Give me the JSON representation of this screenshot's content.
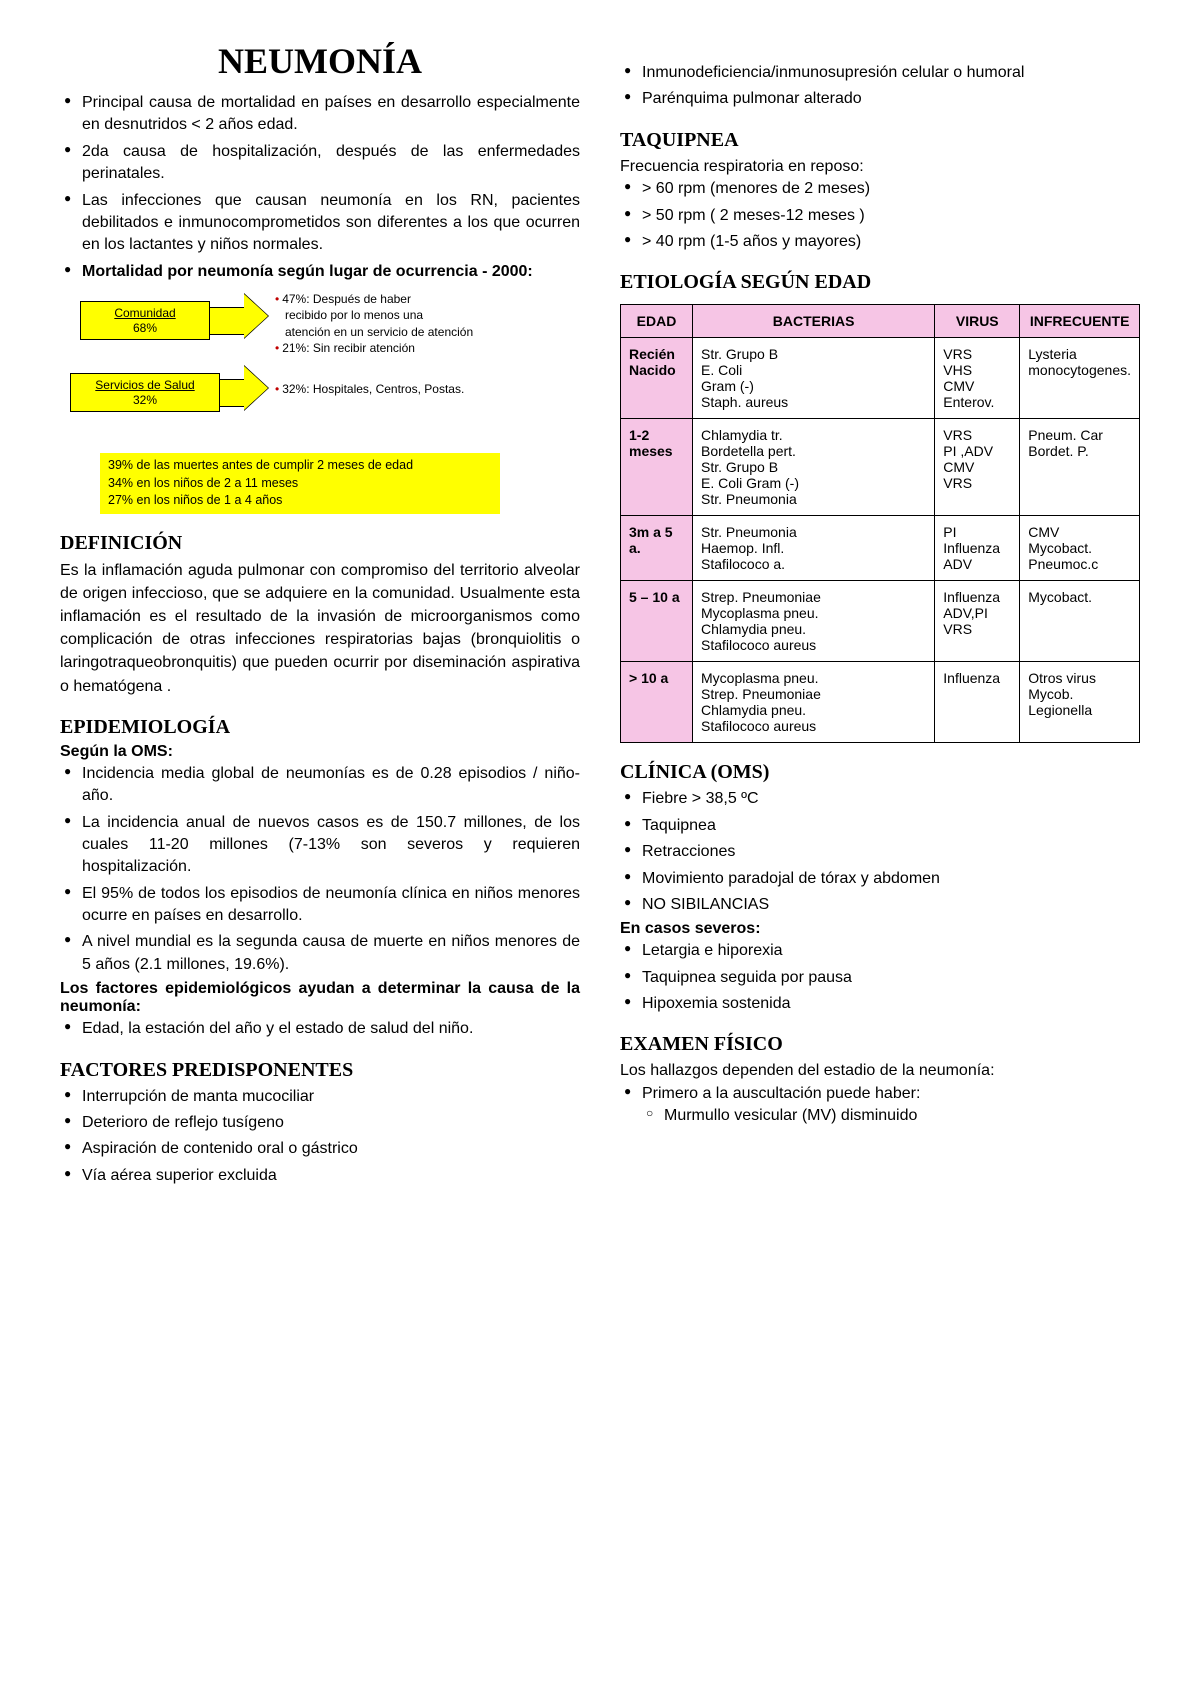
{
  "title": "NEUMONÍA",
  "intro_bullets": [
    "Principal causa de mortalidad  en países en desarrollo especialmente en desnutridos < 2 años edad.",
    "2da causa de hospitalización, después de las enfermedades perinatales.",
    "Las infecciones que causan neumonía en los RN, pacientes debilitados e inmunocomprometidos son diferentes a los que ocurren en los lactantes y niños normales."
  ],
  "intro_bold": "Mortalidad por neumonía según lugar de ocurrencia - 2000:",
  "diagram": {
    "box1_label": "Comunidad",
    "box1_pct": "68%",
    "box2_label": "Servicios de Salud",
    "box2_pct": "32%",
    "ann1a": "47%: Después de haber",
    "ann1b": "recibido por lo menos una",
    "ann1c": "atención en un servicio de atención",
    "ann1d": "21%:  Sin recibir atención",
    "ann2": "32%: Hospitales, Centros, Postas.",
    "block_lines": [
      "39% de las muertes antes de cumplir 2 meses de edad",
      "34% en los niños de 2 a 11 meses",
      "27% en los niños de 1 a 4 años"
    ]
  },
  "def_head": "DEFINICIÓN",
  "def_text": "Es la inflamación aguda pulmonar con compromiso del territorio alveolar de origen infeccioso, que se adquiere en la comunidad. Usualmente esta inflamación es el resultado de la invasión de microorganismos como complicación de otras infecciones respiratorias bajas (bronquiolitis o laringotraqueobronquitis) que pueden ocurrir por diseminación aspirativa o hematógena .",
  "epi_head": "EPIDEMIOLOGÍA",
  "epi_sub": "Según la OMS:",
  "epi_bullets": [
    "Incidencia media global de neumonías es de 0.28 episodios / niño-año.",
    "La incidencia anual de nuevos casos es de 150.7 millones, de los cuales 11-20 millones (7-13% son severos y requieren hospitalización.",
    "El 95% de todos los episodios de neumonía clínica en niños menores ocurre en países en desarrollo.",
    "A nivel mundial es la segunda causa de muerte en niños menores de 5 años (2.1 millones, 19.6%)."
  ],
  "epi_sub2": "Los factores epidemiológicos ayudan a determinar la causa de la neumonía:",
  "epi_bullets2": [
    "Edad, la estación del año y el estado de salud del niño."
  ],
  "fact_head": "FACTORES PREDISPONENTES",
  "fact_bullets": [
    "Interrupción de manta mucociliar",
    "Deterioro de reflejo tusígeno",
    "Aspiración de contenido oral o gástrico",
    "Vía aérea superior excluida"
  ],
  "right_top_bullets": [
    "Inmunodeficiencia/inmunosupresión celular o humoral",
    "Parénquima pulmonar alterado"
  ],
  "taq_head": "TAQUIPNEA",
  "taq_intro": "Frecuencia respiratoria en reposo:",
  "taq_bullets": [
    "> 60 rpm (menores de 2 meses)",
    "> 50 rpm  ( 2 meses-12 meses )",
    "> 40 rpm  (1-5 años y mayores)"
  ],
  "etio_head": "ETIOLOGÍA SEGÚN EDAD",
  "etio_table": {
    "headers": [
      "EDAD",
      "BACTERIAS",
      "VIRUS",
      "INFRECUENTE"
    ],
    "rows": [
      {
        "age": "Recién Nacido",
        "bact": "Str. Grupo B\nE. Coli\nGram (-)\nStaph. aureus",
        "virus": "VRS\nVHS\nCMV\nEnterov.",
        "inf": "Lysteria monocytogenes."
      },
      {
        "age": "1-2 meses",
        "bact": "Chlamydia tr.\nBordetella pert.\nStr. Grupo B\nE. Coli Gram (-)\nStr. Pneumonia",
        "virus": "VRS\nPI ,ADV\nCMV\nVRS",
        "inf": "Pneum. Car\nBordet. P."
      },
      {
        "age": "3m a 5 a.",
        "bact": "Str. Pneumonia\nHaemop. Infl.\nStafilococo a.",
        "virus": "PI\nInfluenza\nADV",
        "inf": "CMV\nMycobact.\nPneumoc.c"
      },
      {
        "age": "5 – 10 a",
        "bact": "Strep. Pneumoniae\nMycoplasma pneu.\nChlamydia pneu.\nStafilococo aureus",
        "virus": "Influenza\nADV,PI\nVRS",
        "inf": "Mycobact."
      },
      {
        "age": "> 10 a",
        "bact": "Mycoplasma pneu.\nStrep. Pneumoniae\nChlamydia pneu.\nStafilococo aureus",
        "virus": "Influenza",
        "inf": "Otros virus\nMycob.\nLegionella"
      }
    ]
  },
  "clin_head": "CLÍNICA (OMS)",
  "clin_bullets": [
    "Fiebre > 38,5 ºC",
    "Taquipnea",
    "Retracciones",
    "Movimiento paradojal de tórax y abdomen",
    "NO SIBILANCIAS"
  ],
  "clin_sub": "En casos severos:",
  "clin_bullets2": [
    "Letargia e hiporexia",
    "Taquipnea seguida por pausa",
    "Hipoxemia sostenida"
  ],
  "exam_head": "EXAMEN FÍSICO",
  "exam_intro": "Los hallazgos dependen del estadio de la neumonía:",
  "exam_bullet": "Primero a la auscultación puede haber:",
  "exam_sub": "Murmullo vesicular (MV) disminuido"
}
